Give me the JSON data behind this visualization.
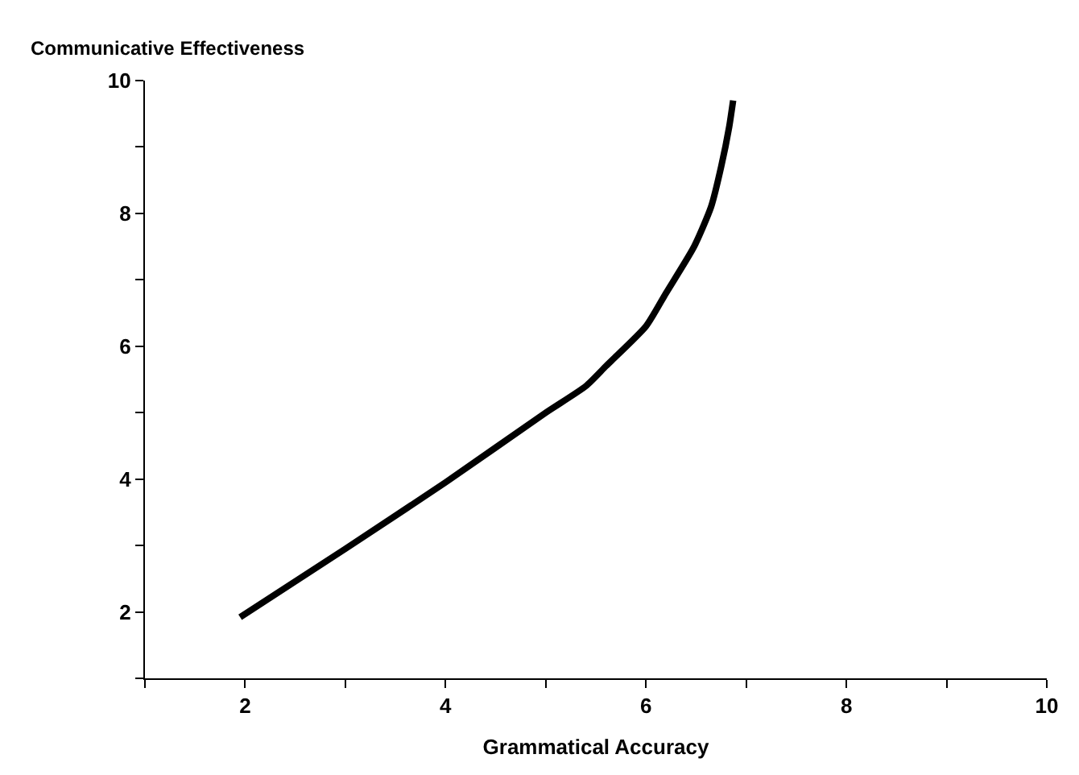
{
  "chart_data": {
    "type": "line",
    "xlabel": "Grammatical Accuracy",
    "ylabel": "Communicative Effectiveness",
    "x": [
      1.95,
      3,
      4,
      5,
      5.4,
      5.6,
      6,
      6.2,
      6.48,
      6.65,
      6.75,
      6.83,
      6.87
    ],
    "series": [
      {
        "color": "#000000",
        "values": [
          1.92,
          2.95,
          3.95,
          5,
          5.4,
          5.7,
          6.3,
          6.8,
          7.5,
          8.1,
          8.7,
          9.3,
          9.7
        ]
      }
    ],
    "xlim": [
      1,
      10
    ],
    "ylim": [
      1,
      10
    ],
    "xticks": [
      {
        "value": 1,
        "label": null
      },
      2,
      {
        "value": 3,
        "label": null
      },
      4,
      {
        "value": 5,
        "label": null
      },
      6,
      {
        "value": 7,
        "label": null
      },
      8,
      {
        "value": 9,
        "label": null
      },
      10
    ],
    "yticks": [
      {
        "value": 1,
        "label": null
      },
      2,
      {
        "value": 3,
        "label": null
      },
      4,
      {
        "value": 5,
        "label": null
      },
      6,
      {
        "value": 7,
        "label": null
      },
      8,
      {
        "value": 9,
        "label": null
      },
      10
    ],
    "grid": false,
    "marker": "none",
    "line_style": "solid"
  }
}
